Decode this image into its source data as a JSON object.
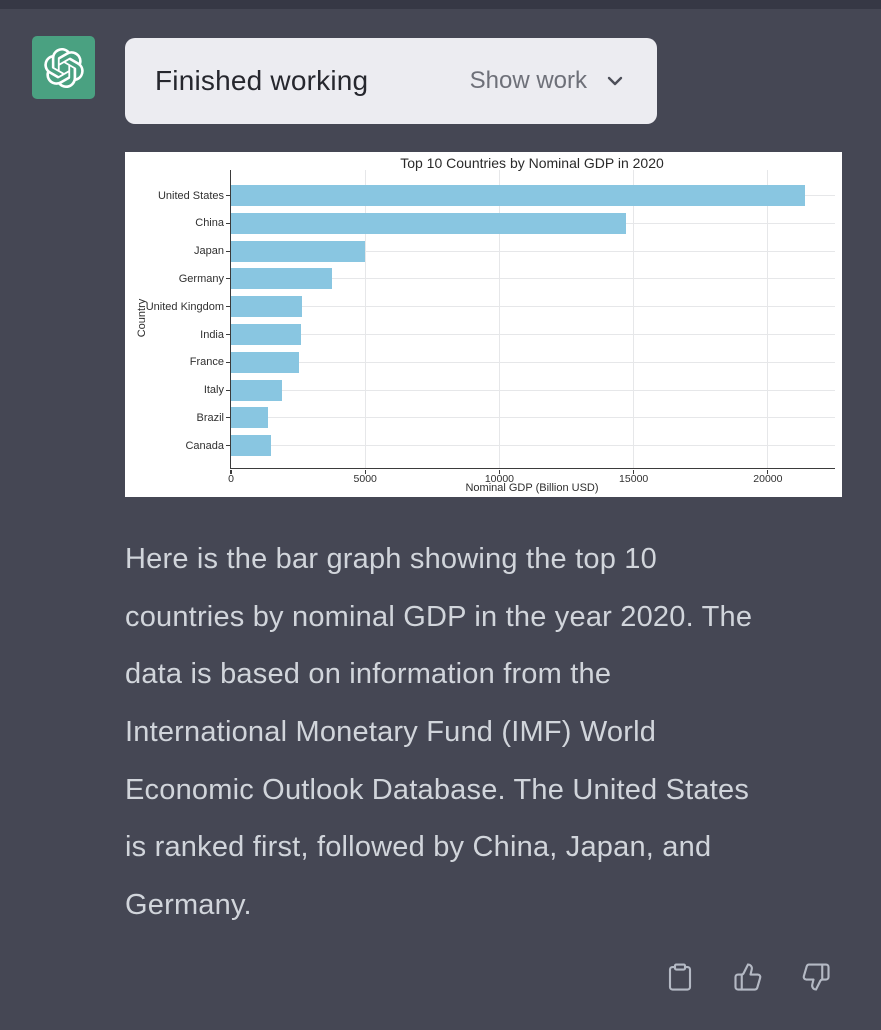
{
  "page": {
    "background": "#454754"
  },
  "assistant_header": {
    "avatar_icon": "openai-logo",
    "avatar_color": "#4AA181",
    "status_label": "Finished working",
    "show_work_label": "Show work",
    "chevron_icon": "chevron-down"
  },
  "chart_data": {
    "type": "bar",
    "orientation": "horizontal",
    "title": "Top 10 Countries by Nominal GDP in 2020",
    "xlabel": "Nominal GDP (Billion USD)",
    "ylabel": "Country",
    "categories": [
      "United States",
      "China",
      "Japan",
      "Germany",
      "United Kingdom",
      "India",
      "France",
      "Italy",
      "Brazil",
      "Canada"
    ],
    "values": [
      21400,
      14700,
      5000,
      3770,
      2630,
      2600,
      2550,
      1900,
      1370,
      1500
    ],
    "x_ticks": [
      0,
      5000,
      10000,
      15000,
      20000
    ],
    "xlim": [
      0,
      22500
    ],
    "grid": true,
    "legend": false,
    "bar_color": "#89C6E1",
    "panel_background": "#FFFFFF"
  },
  "message": {
    "lines": [
      "Here is the bar graph showing the top 10",
      "countries by nominal GDP in the year 2020. The",
      "data is based on information from the",
      "International Monetary Fund (IMF) World",
      "Economic Outlook Database. The United States",
      "is ranked first, followed by China, Japan, and",
      "Germany."
    ]
  },
  "actions": {
    "copy_icon": "clipboard",
    "thumbs_up_icon": "thumbs-up",
    "thumbs_down_icon": "thumbs-down"
  }
}
